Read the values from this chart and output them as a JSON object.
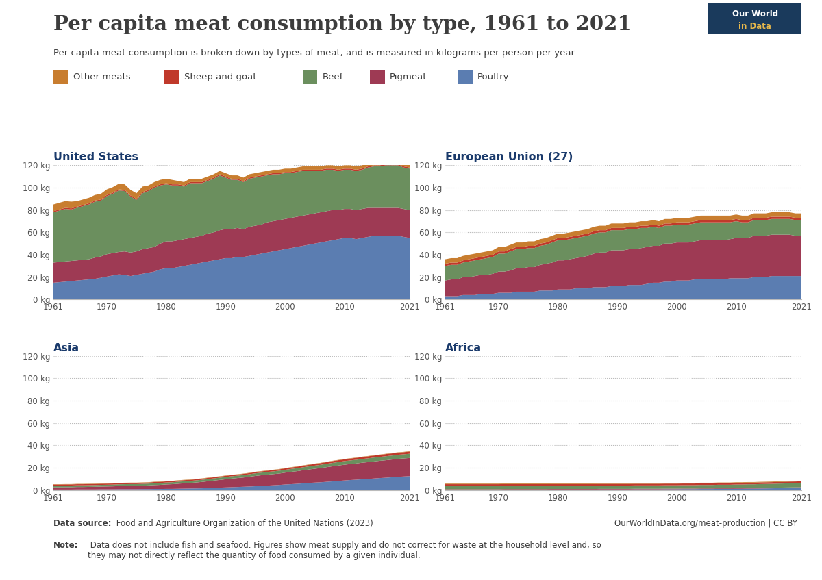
{
  "title": "Per capita meat consumption by type, 1961 to 2021",
  "subtitle": "Per capita meat consumption is broken down by types of meat, and is measured in kilograms per person per year.",
  "datasource_bold": "Data source:",
  "datasource_rest": " Food and Agriculture Organization of the United Nations (2023)",
  "website": "OurWorldInData.org/meat-production | CC BY",
  "note_bold": "Note:",
  "note_rest": " Data does not include fish and seafood. Figures show meat supply and do not correct for waste at the household level and, so\nthey may not directly reflect the quantity of food consumed by a given individual.",
  "colors": {
    "poultry": "#5b7db1",
    "pigmeat": "#9e3a54",
    "beef": "#6b8f5e",
    "sheep_goat": "#c0392b",
    "other": "#c87d2f"
  },
  "years": [
    1961,
    1962,
    1963,
    1964,
    1965,
    1966,
    1967,
    1968,
    1969,
    1970,
    1971,
    1972,
    1973,
    1974,
    1975,
    1976,
    1977,
    1978,
    1979,
    1980,
    1981,
    1982,
    1983,
    1984,
    1985,
    1986,
    1987,
    1988,
    1989,
    1990,
    1991,
    1992,
    1993,
    1994,
    1995,
    1996,
    1997,
    1998,
    1999,
    2000,
    2001,
    2002,
    2003,
    2004,
    2005,
    2006,
    2007,
    2008,
    2009,
    2010,
    2011,
    2012,
    2013,
    2014,
    2015,
    2016,
    2017,
    2018,
    2019,
    2020,
    2021
  ],
  "us": {
    "poultry": [
      15,
      15.5,
      16,
      16.5,
      17,
      17.5,
      18,
      18.5,
      19.5,
      20.5,
      21.5,
      22.5,
      22,
      21,
      22,
      23,
      24,
      25,
      27,
      28,
      28,
      29,
      30,
      31,
      32,
      33,
      34,
      35,
      36,
      37,
      37,
      38,
      38,
      39,
      40,
      41,
      42,
      43,
      44,
      45,
      46,
      47,
      48,
      49,
      50,
      51,
      52,
      53,
      54,
      55,
      55,
      54,
      55,
      56,
      57,
      57,
      57,
      57,
      57,
      56,
      55
    ],
    "pigmeat": [
      18,
      18,
      18,
      18,
      18,
      18,
      18,
      19,
      19,
      20,
      20,
      20,
      21,
      21,
      21,
      22,
      22,
      22,
      23,
      24,
      24,
      24,
      24,
      24,
      24,
      24,
      25,
      25,
      26,
      26,
      26,
      26,
      25,
      26,
      26,
      26,
      27,
      27,
      27,
      27,
      27,
      27,
      27,
      27,
      27,
      27,
      27,
      27,
      26,
      26,
      26,
      26,
      26,
      26,
      25,
      25,
      25,
      25,
      25,
      25,
      25
    ],
    "beef": [
      45,
      46,
      47,
      46,
      47,
      48,
      49,
      50,
      50,
      52,
      53,
      55,
      54,
      50,
      46,
      50,
      51,
      53,
      52,
      51,
      50,
      49,
      47,
      49,
      48,
      47,
      47,
      48,
      49,
      46,
      44,
      43,
      42,
      43,
      43,
      43,
      42,
      42,
      41,
      41,
      40,
      40,
      40,
      39,
      38,
      37,
      37,
      36,
      35,
      35,
      35,
      35,
      35,
      36,
      37,
      37,
      38,
      38,
      38,
      37,
      37
    ],
    "sheep_goat": [
      1,
      1,
      1,
      1,
      1,
      1,
      1,
      1,
      1,
      1,
      1,
      1,
      1,
      1,
      1,
      1,
      1,
      1,
      1,
      1,
      1,
      1,
      1,
      1,
      1,
      1,
      1,
      1,
      1,
      1,
      1,
      1,
      1,
      1,
      1,
      1,
      1,
      1,
      1,
      1,
      1,
      1,
      1,
      1,
      1,
      1,
      1,
      1,
      1,
      1,
      1,
      1,
      1,
      1,
      1,
      1,
      1,
      1,
      1,
      1,
      1
    ],
    "other": [
      6,
      6,
      6,
      6,
      5,
      5,
      5,
      5,
      5,
      5,
      5,
      5,
      5,
      5,
      5,
      5,
      4,
      4,
      4,
      4,
      4,
      3,
      3,
      3,
      3,
      3,
      3,
      3,
      3,
      3,
      3,
      3,
      3,
      3,
      3,
      3,
      3,
      3,
      3,
      3,
      3,
      3,
      3,
      3,
      3,
      3,
      3,
      3,
      3,
      3,
      3,
      3,
      3,
      3,
      3,
      3,
      3,
      3,
      3,
      3,
      3
    ]
  },
  "eu": {
    "poultry": [
      3,
      3,
      3,
      4,
      4,
      4,
      5,
      5,
      5,
      6,
      6,
      6,
      7,
      7,
      7,
      7,
      8,
      8,
      8,
      9,
      9,
      9,
      10,
      10,
      10,
      11,
      11,
      11,
      12,
      12,
      12,
      13,
      13,
      13,
      14,
      15,
      15,
      16,
      16,
      17,
      17,
      17,
      18,
      18,
      18,
      18,
      18,
      18,
      19,
      19,
      19,
      19,
      20,
      20,
      20,
      21,
      21,
      21,
      21,
      21,
      21
    ],
    "pigmeat": [
      14,
      15,
      15,
      16,
      16,
      17,
      17,
      17,
      18,
      19,
      19,
      20,
      21,
      21,
      22,
      22,
      23,
      24,
      25,
      26,
      26,
      27,
      27,
      28,
      29,
      30,
      31,
      31,
      32,
      32,
      32,
      32,
      32,
      33,
      33,
      33,
      33,
      34,
      34,
      34,
      34,
      34,
      34,
      35,
      35,
      35,
      35,
      35,
      35,
      36,
      36,
      36,
      37,
      37,
      37,
      37,
      37,
      37,
      37,
      36,
      36
    ],
    "beef": [
      13,
      13,
      13,
      13,
      14,
      14,
      14,
      15,
      15,
      16,
      16,
      17,
      17,
      17,
      17,
      17,
      17,
      17,
      18,
      18,
      18,
      18,
      18,
      18,
      18,
      18,
      18,
      18,
      18,
      18,
      18,
      18,
      18,
      18,
      17,
      17,
      16,
      16,
      16,
      16,
      16,
      16,
      16,
      16,
      16,
      16,
      16,
      16,
      15,
      15,
      14,
      14,
      14,
      14,
      14,
      14,
      14,
      14,
      14,
      14,
      14
    ],
    "sheep_goat": [
      2,
      2,
      2,
      2,
      2,
      2,
      2,
      2,
      2,
      2,
      2,
      2,
      2,
      2,
      2,
      2,
      2,
      2,
      2,
      2,
      2,
      2,
      2,
      2,
      2,
      2,
      2,
      2,
      2,
      2,
      2,
      2,
      2,
      2,
      2,
      2,
      2,
      2,
      2,
      2,
      2,
      2,
      2,
      2,
      2,
      2,
      2,
      2,
      2,
      2,
      2,
      2,
      2,
      2,
      2,
      2,
      2,
      2,
      2,
      2,
      2
    ],
    "other": [
      4,
      4,
      4,
      4,
      4,
      4,
      4,
      4,
      4,
      4,
      4,
      4,
      4,
      4,
      4,
      4,
      4,
      4,
      4,
      4,
      4,
      4,
      4,
      4,
      4,
      4,
      4,
      4,
      4,
      4,
      4,
      4,
      4,
      4,
      4,
      4,
      4,
      4,
      4,
      4,
      4,
      4,
      4,
      4,
      4,
      4,
      4,
      4,
      4,
      4,
      4,
      4,
      4,
      4,
      4,
      4,
      4,
      4,
      4,
      4,
      4
    ]
  },
  "asia": {
    "poultry": [
      0.5,
      0.5,
      0.5,
      0.5,
      0.6,
      0.6,
      0.6,
      0.6,
      0.7,
      0.7,
      0.7,
      0.8,
      0.8,
      0.8,
      0.8,
      0.9,
      0.9,
      1,
      1,
      1.1,
      1.1,
      1.2,
      1.3,
      1.4,
      1.5,
      1.6,
      1.8,
      2,
      2.2,
      2.4,
      2.6,
      2.8,
      3,
      3.2,
      3.5,
      3.8,
      4,
      4.3,
      4.6,
      5,
      5.3,
      5.6,
      6,
      6.4,
      6.7,
      7,
      7.4,
      7.8,
      8.2,
      8.6,
      9,
      9.3,
      9.7,
      10,
      10.4,
      10.8,
      11.1,
      11.5,
      11.9,
      12.2,
      12.5
    ],
    "pigmeat": [
      2,
      2,
      2.1,
      2.1,
      2.2,
      2.2,
      2.3,
      2.4,
      2.5,
      2.6,
      2.7,
      2.8,
      2.9,
      3,
      3,
      3.1,
      3.3,
      3.5,
      3.7,
      4,
      4.2,
      4.5,
      4.8,
      5,
      5.3,
      5.7,
      6.1,
      6.5,
      6.9,
      7.3,
      7.7,
      8,
      8.3,
      8.8,
      9.2,
      9.5,
      9.8,
      10,
      10.2,
      10.6,
      11,
      11.3,
      11.7,
      12,
      12.4,
      12.7,
      13.1,
      13.5,
      13.8,
      14.1,
      14.3,
      14.5,
      14.8,
      15,
      15.2,
      15.4,
      15.6,
      15.8,
      16,
      16.1,
      16.2
    ],
    "beef": [
      1.5,
      1.5,
      1.5,
      1.5,
      1.5,
      1.5,
      1.5,
      1.5,
      1.5,
      1.5,
      1.5,
      1.6,
      1.6,
      1.6,
      1.6,
      1.6,
      1.6,
      1.7,
      1.7,
      1.7,
      1.7,
      1.8,
      1.8,
      1.8,
      1.9,
      1.9,
      2,
      2,
      2,
      2.1,
      2.1,
      2.1,
      2.2,
      2.2,
      2.3,
      2.3,
      2.4,
      2.4,
      2.5,
      2.5,
      2.6,
      2.7,
      2.7,
      2.8,
      2.8,
      2.9,
      3,
      3,
      3.1,
      3.2,
      3.2,
      3.3,
      3.3,
      3.4,
      3.5,
      3.5,
      3.6,
      3.6,
      3.7,
      3.7,
      3.8
    ],
    "sheep_goat": [
      1,
      1,
      1,
      1,
      1,
      1,
      1,
      1,
      1,
      1,
      1,
      1,
      1,
      1,
      1,
      1,
      1,
      1,
      1,
      1,
      1,
      1,
      1,
      1,
      1,
      1,
      1,
      1,
      1,
      1,
      1,
      1,
      1,
      1,
      1.1,
      1.1,
      1.1,
      1.2,
      1.2,
      1.3,
      1.3,
      1.3,
      1.4,
      1.4,
      1.5,
      1.5,
      1.5,
      1.6,
      1.6,
      1.6,
      1.7,
      1.7,
      1.8,
      1.8,
      1.8,
      1.8,
      1.9,
      1.9,
      1.9,
      1.9,
      2
    ],
    "other": [
      0.3,
      0.3,
      0.3,
      0.3,
      0.3,
      0.3,
      0.3,
      0.3,
      0.3,
      0.3,
      0.3,
      0.3,
      0.3,
      0.3,
      0.3,
      0.3,
      0.3,
      0.3,
      0.3,
      0.3,
      0.3,
      0.3,
      0.3,
      0.3,
      0.3,
      0.3,
      0.3,
      0.3,
      0.3,
      0.3,
      0.3,
      0.3,
      0.3,
      0.3,
      0.3,
      0.3,
      0.3,
      0.3,
      0.3,
      0.3,
      0.3,
      0.3,
      0.3,
      0.3,
      0.3,
      0.3,
      0.3,
      0.3,
      0.3,
      0.3,
      0.3,
      0.3,
      0.3,
      0.3,
      0.3,
      0.3,
      0.3,
      0.3,
      0.3,
      0.3,
      0.3
    ]
  },
  "africa": {
    "poultry": [
      0.3,
      0.3,
      0.3,
      0.3,
      0.3,
      0.3,
      0.3,
      0.3,
      0.3,
      0.3,
      0.4,
      0.4,
      0.4,
      0.4,
      0.4,
      0.4,
      0.4,
      0.4,
      0.5,
      0.5,
      0.5,
      0.5,
      0.5,
      0.5,
      0.5,
      0.5,
      0.6,
      0.6,
      0.6,
      0.6,
      0.6,
      0.6,
      0.7,
      0.7,
      0.7,
      0.7,
      0.7,
      0.8,
      0.8,
      0.8,
      0.9,
      0.9,
      0.9,
      1,
      1,
      1,
      1.1,
      1.1,
      1.1,
      1.2,
      1.2,
      1.3,
      1.3,
      1.4,
      1.5,
      1.6,
      1.7,
      1.8,
      1.9,
      2,
      2.1
    ],
    "pigmeat": [
      0.5,
      0.5,
      0.5,
      0.5,
      0.5,
      0.5,
      0.5,
      0.5,
      0.5,
      0.5,
      0.5,
      0.5,
      0.5,
      0.5,
      0.5,
      0.5,
      0.5,
      0.5,
      0.5,
      0.5,
      0.5,
      0.5,
      0.5,
      0.5,
      0.5,
      0.5,
      0.5,
      0.5,
      0.5,
      0.5,
      0.5,
      0.5,
      0.5,
      0.5,
      0.5,
      0.5,
      0.5,
      0.5,
      0.5,
      0.5,
      0.5,
      0.5,
      0.5,
      0.5,
      0.5,
      0.5,
      0.5,
      0.5,
      0.5,
      0.5,
      0.5,
      0.5,
      0.5,
      0.5,
      0.5,
      0.5,
      0.5,
      0.5,
      0.5,
      0.5,
      0.5
    ],
    "beef": [
      3,
      3,
      3,
      3,
      3,
      3,
      3,
      3,
      3,
      3,
      3,
      3,
      3,
      3,
      3,
      3,
      3,
      3,
      3,
      3,
      3,
      3,
      3,
      3,
      3,
      3,
      3,
      3,
      3,
      3,
      3,
      3,
      3,
      3,
      3,
      3,
      3,
      3,
      3,
      3,
      3,
      3,
      3,
      3.1,
      3.1,
      3.1,
      3.2,
      3.2,
      3.2,
      3.3,
      3.3,
      3.4,
      3.4,
      3.5,
      3.5,
      3.5,
      3.6,
      3.6,
      3.7,
      3.7,
      3.8
    ],
    "sheep_goat": [
      1.5,
      1.5,
      1.5,
      1.5,
      1.5,
      1.5,
      1.5,
      1.5,
      1.5,
      1.5,
      1.5,
      1.5,
      1.5,
      1.5,
      1.5,
      1.5,
      1.5,
      1.5,
      1.5,
      1.5,
      1.5,
      1.5,
      1.5,
      1.5,
      1.5,
      1.5,
      1.5,
      1.5,
      1.5,
      1.5,
      1.5,
      1.5,
      1.5,
      1.5,
      1.5,
      1.5,
      1.5,
      1.5,
      1.5,
      1.5,
      1.5,
      1.5,
      1.5,
      1.5,
      1.5,
      1.5,
      1.5,
      1.5,
      1.5,
      1.5,
      1.5,
      1.5,
      1.5,
      1.5,
      1.5,
      1.5,
      1.5,
      1.5,
      1.5,
      1.5,
      1.5
    ],
    "other": [
      0.5,
      0.5,
      0.5,
      0.5,
      0.5,
      0.5,
      0.5,
      0.5,
      0.5,
      0.5,
      0.5,
      0.5,
      0.5,
      0.5,
      0.5,
      0.5,
      0.5,
      0.5,
      0.5,
      0.5,
      0.5,
      0.5,
      0.5,
      0.5,
      0.5,
      0.5,
      0.5,
      0.5,
      0.5,
      0.5,
      0.5,
      0.5,
      0.5,
      0.5,
      0.5,
      0.5,
      0.5,
      0.5,
      0.5,
      0.5,
      0.5,
      0.5,
      0.5,
      0.5,
      0.5,
      0.5,
      0.5,
      0.5,
      0.5,
      0.5,
      0.5,
      0.5,
      0.5,
      0.5,
      0.5,
      0.5,
      0.5,
      0.5,
      0.5,
      0.5,
      0.5
    ]
  },
  "logo_bg": "#1a3a5c",
  "logo_text1": "Our World",
  "logo_text2": "in Data",
  "logo_text2_color": "#e8b84b",
  "title_color": "#3d3d3d",
  "subtitle_color": "#3d3d3d",
  "region_title_color": "#1a3a6b",
  "tick_label_color": "#555555",
  "grid_color": "#bbbbbb",
  "axis_color": "#bbbbbb",
  "footer_color": "#3d3d3d"
}
